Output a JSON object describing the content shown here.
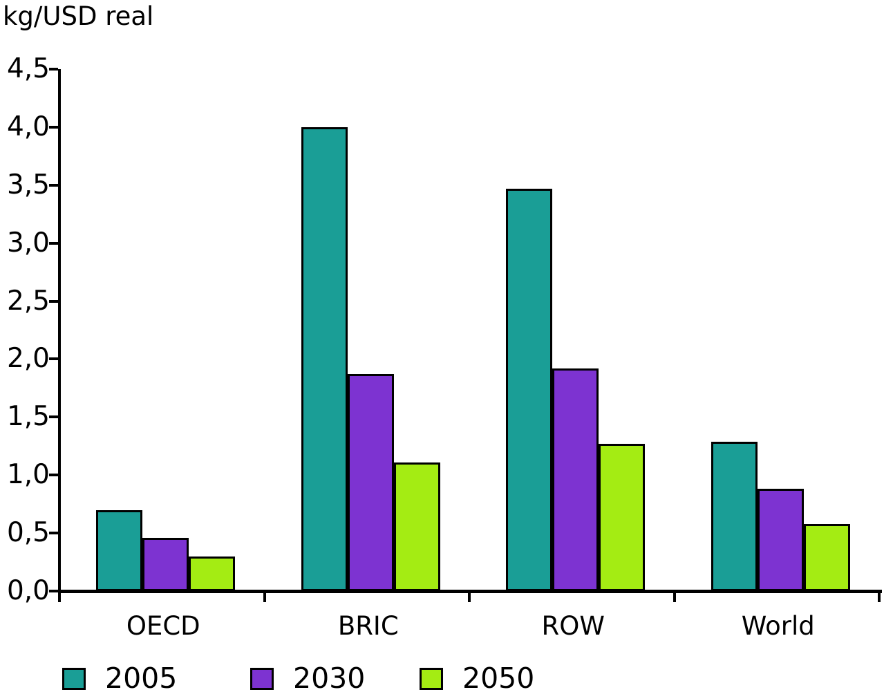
{
  "colors": {
    "teal": "#1A9E96",
    "purple": "#7D33D1",
    "green": "#A4EC13",
    "axis": "#000000"
  },
  "chart_data": {
    "type": "bar",
    "title": "kg/USD real",
    "ylabel": "kg/USD real",
    "xlabel": "",
    "categories": [
      "OECD",
      "BRIC",
      "ROW",
      "World"
    ],
    "series": [
      {
        "name": "2005",
        "color_key": "teal",
        "values": [
          0.7,
          4.0,
          3.47,
          1.29
        ]
      },
      {
        "name": "2030",
        "color_key": "purple",
        "values": [
          0.46,
          1.87,
          1.92,
          0.88
        ]
      },
      {
        "name": "2050",
        "color_key": "green",
        "values": [
          0.3,
          1.11,
          1.27,
          0.58
        ]
      }
    ],
    "ylim": [
      0,
      4.5
    ],
    "y_ticks": [
      {
        "value": 4.5,
        "label": "4,5"
      },
      {
        "value": 4.0,
        "label": "4,0"
      },
      {
        "value": 3.5,
        "label": "3,5"
      },
      {
        "value": 3.0,
        "label": "3,0"
      },
      {
        "value": 2.5,
        "label": "2,5"
      },
      {
        "value": 2.0,
        "label": "2,0"
      },
      {
        "value": 1.5,
        "label": "1,5"
      },
      {
        "value": 1.0,
        "label": "1,0"
      },
      {
        "value": 0.5,
        "label": "0,5"
      },
      {
        "value": 0.0,
        "label": "0,0"
      }
    ],
    "grid": false,
    "legend_position": "bottom"
  }
}
